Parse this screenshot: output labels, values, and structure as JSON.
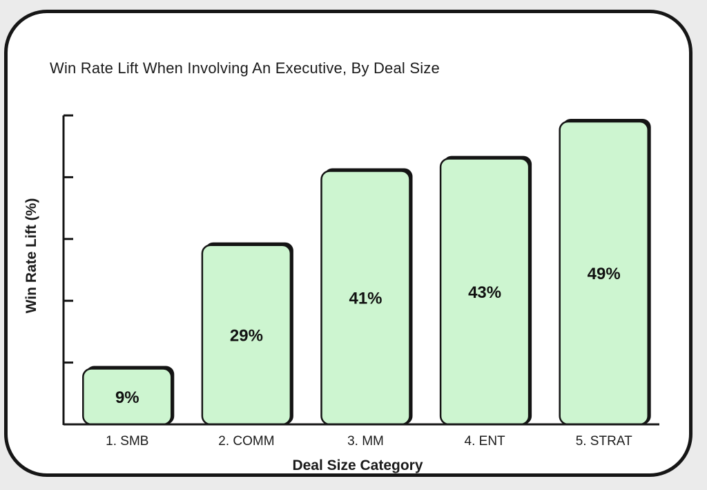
{
  "chart_data": {
    "type": "bar",
    "title": "Win Rate Lift When Involving An Executive, By Deal Size",
    "xlabel": "Deal Size Category",
    "ylabel": "Win Rate Lift (%)",
    "categories": [
      "1. SMB",
      "2. COMM",
      "3. MM",
      "4. ENT",
      "5. STRAT"
    ],
    "values": [
      9,
      29,
      41,
      43,
      49
    ],
    "data_labels": [
      "9%",
      "29%",
      "41%",
      "43%",
      "49%"
    ],
    "ylim": [
      0,
      50
    ],
    "y_ticks": [
      0,
      10,
      20,
      30,
      40,
      50
    ],
    "y_tick_labels_shown": false,
    "grid": false,
    "legend": "none",
    "colors": {
      "bar_fill": "#cdf5d0",
      "bar_stroke": "#141414",
      "axis": "#141414"
    }
  }
}
